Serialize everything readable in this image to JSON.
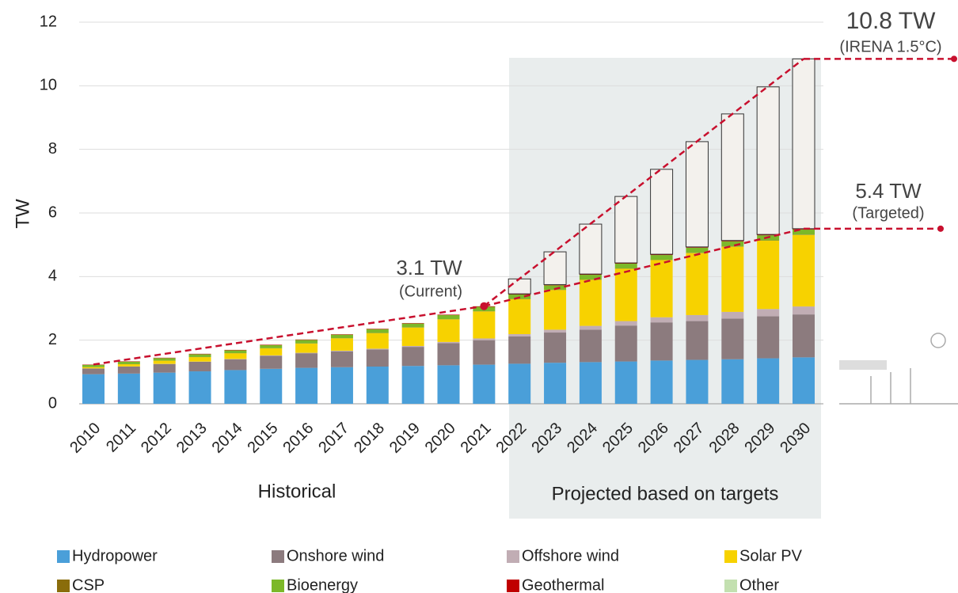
{
  "chart_data": {
    "type": "stacked_bar",
    "y_label": "TW",
    "categories": [
      "2010",
      "2011",
      "2012",
      "2013",
      "2014",
      "2015",
      "2016",
      "2017",
      "2018",
      "2019",
      "2020",
      "2021",
      "2022",
      "2023",
      "2024",
      "2025",
      "2026",
      "2027",
      "2028",
      "2029",
      "2030"
    ],
    "ylim": [
      0,
      12
    ],
    "yticks": [
      0,
      2,
      4,
      6,
      8,
      10,
      12
    ],
    "grid": true,
    "series": [
      {
        "name": "Hydropower",
        "color": "#4a9fd9",
        "values": [
          0.93,
          0.95,
          0.98,
          1.02,
          1.06,
          1.1,
          1.13,
          1.15,
          1.17,
          1.19,
          1.21,
          1.23,
          1.26,
          1.29,
          1.31,
          1.33,
          1.36,
          1.38,
          1.4,
          1.43,
          1.46
        ]
      },
      {
        "name": "Onshore wind",
        "color": "#8c7b7e",
        "values": [
          0.18,
          0.22,
          0.27,
          0.3,
          0.34,
          0.41,
          0.46,
          0.5,
          0.54,
          0.6,
          0.7,
          0.77,
          0.86,
          0.95,
          1.02,
          1.13,
          1.2,
          1.22,
          1.28,
          1.32,
          1.35
        ]
      },
      {
        "name": "Offshore wind",
        "color": "#c1adb4",
        "values": [
          0.003,
          0.004,
          0.005,
          0.007,
          0.009,
          0.012,
          0.014,
          0.019,
          0.023,
          0.028,
          0.034,
          0.055,
          0.07,
          0.09,
          0.12,
          0.14,
          0.16,
          0.19,
          0.21,
          0.23,
          0.25
        ]
      },
      {
        "name": "Solar PV",
        "color": "#f7d200",
        "values": [
          0.04,
          0.07,
          0.1,
          0.14,
          0.18,
          0.22,
          0.29,
          0.39,
          0.49,
          0.58,
          0.71,
          0.85,
          1.1,
          1.25,
          1.45,
          1.65,
          1.8,
          1.95,
          2.05,
          2.15,
          2.25
        ]
      },
      {
        "name": "CSP",
        "color": "#8a6d0b",
        "values": [
          0.001,
          0.002,
          0.003,
          0.003,
          0.004,
          0.005,
          0.005,
          0.005,
          0.005,
          0.006,
          0.006,
          0.006,
          0.006,
          0.006,
          0.007,
          0.007,
          0.008,
          0.008,
          0.009,
          0.009,
          0.01
        ]
      },
      {
        "name": "Bioenergy",
        "color": "#7cb829",
        "values": [
          0.07,
          0.08,
          0.08,
          0.09,
          0.09,
          0.1,
          0.11,
          0.11,
          0.12,
          0.12,
          0.13,
          0.14,
          0.14,
          0.14,
          0.15,
          0.15,
          0.15,
          0.16,
          0.16,
          0.16,
          0.16
        ]
      },
      {
        "name": "Geothermal",
        "color": "#c00000",
        "values": [
          0.01,
          0.01,
          0.01,
          0.012,
          0.012,
          0.013,
          0.013,
          0.014,
          0.014,
          0.014,
          0.014,
          0.015,
          0.016,
          0.017,
          0.018,
          0.018,
          0.019,
          0.019,
          0.02,
          0.02,
          0.02
        ]
      },
      {
        "name": "Other",
        "color": "#c3e0b0",
        "values": [
          0.001,
          0.001,
          0.001,
          0.002,
          0.002,
          0.002,
          0.003,
          0.003,
          0.003,
          0.004,
          0.004,
          0.004,
          0.005,
          0.005,
          0.005,
          0.005,
          0.006,
          0.006,
          0.006,
          0.006,
          0.006
        ]
      },
      {
        "color": "#f3f1ed",
        "values": [
          null,
          null,
          null,
          null,
          null,
          null,
          null,
          null,
          null,
          null,
          null,
          null,
          0.47,
          1.03,
          1.57,
          2.09,
          2.67,
          3.31,
          3.98,
          4.64,
          5.34
        ]
      }
    ],
    "annotations": {
      "current": "3.1 TW",
      "current_note": "(Current)",
      "targeted": "5.4 TW",
      "targeted_note": "(Targeted)",
      "irena": "10.8 TW",
      "irena_note": "(IRENA 1.5°C)",
      "historical": "Historical",
      "projected": "Projected based on targets"
    }
  }
}
